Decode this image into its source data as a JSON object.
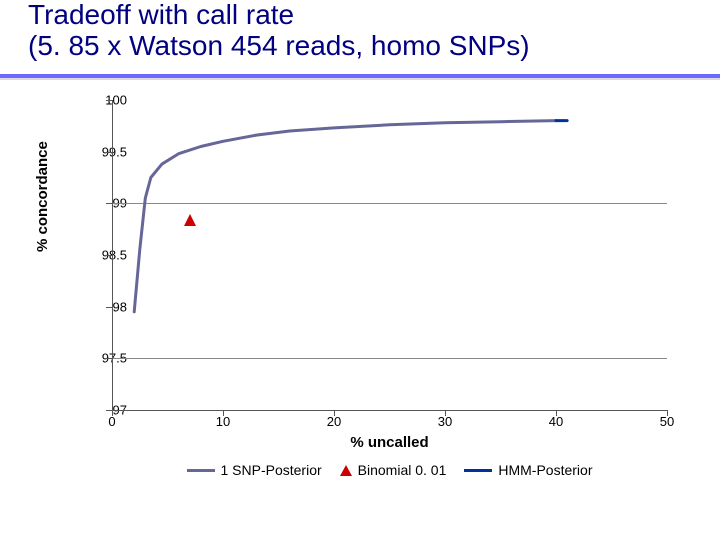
{
  "title_line1": "Tradeoff with call rate",
  "title_line2": "(5. 85 x Watson 454 reads, homo SNPs)",
  "chart": {
    "type": "line+scatter",
    "xlabel": "% uncalled",
    "ylabel": "% concordance",
    "xlim": [
      0,
      50
    ],
    "ylim": [
      97,
      100
    ],
    "xtick_step": 10,
    "ytick_step": 0.5,
    "xticks": [
      0,
      10,
      20,
      30,
      40,
      50
    ],
    "yticks": [
      97,
      97.5,
      98,
      98.5,
      99,
      99.5,
      100
    ],
    "ytick_labels": [
      "97",
      "97.5",
      "98",
      "98.5",
      "99",
      "99.5",
      "100"
    ],
    "grid_color": "#888888",
    "axis_color": "#555555",
    "background_color": "#ffffff",
    "label_fontsize": 15,
    "tick_fontsize": 13,
    "grid_y": [
      97.5,
      99
    ],
    "series": [
      {
        "name": "1 SNP-Posterior",
        "legend_label": "1 SNP-Posterior",
        "kind": "line",
        "color": "#666699",
        "line_width": 3,
        "data": [
          [
            2.0,
            97.95
          ],
          [
            2.5,
            98.55
          ],
          [
            3.0,
            99.05
          ],
          [
            3.5,
            99.25
          ],
          [
            4.5,
            99.38
          ],
          [
            6.0,
            99.48
          ],
          [
            8.0,
            99.55
          ],
          [
            10.0,
            99.6
          ],
          [
            13.0,
            99.66
          ],
          [
            16.0,
            99.7
          ],
          [
            20.0,
            99.73
          ],
          [
            25.0,
            99.76
          ],
          [
            30.0,
            99.78
          ],
          [
            35.0,
            99.79
          ],
          [
            40.0,
            99.8
          ]
        ]
      },
      {
        "name": "Binomial 0.01",
        "legend_label": "Binomial 0. 01",
        "kind": "scatter",
        "marker": "triangle",
        "color": "#cc0000",
        "marker_size": 12,
        "data": [
          [
            7.0,
            98.8
          ]
        ]
      },
      {
        "name": "HMM-Posterior",
        "legend_label": "HMM-Posterior",
        "kind": "line",
        "color": "#003399",
        "line_width": 3,
        "data": [
          [
            40.0,
            99.8
          ],
          [
            41.0,
            99.8
          ]
        ]
      }
    ]
  }
}
